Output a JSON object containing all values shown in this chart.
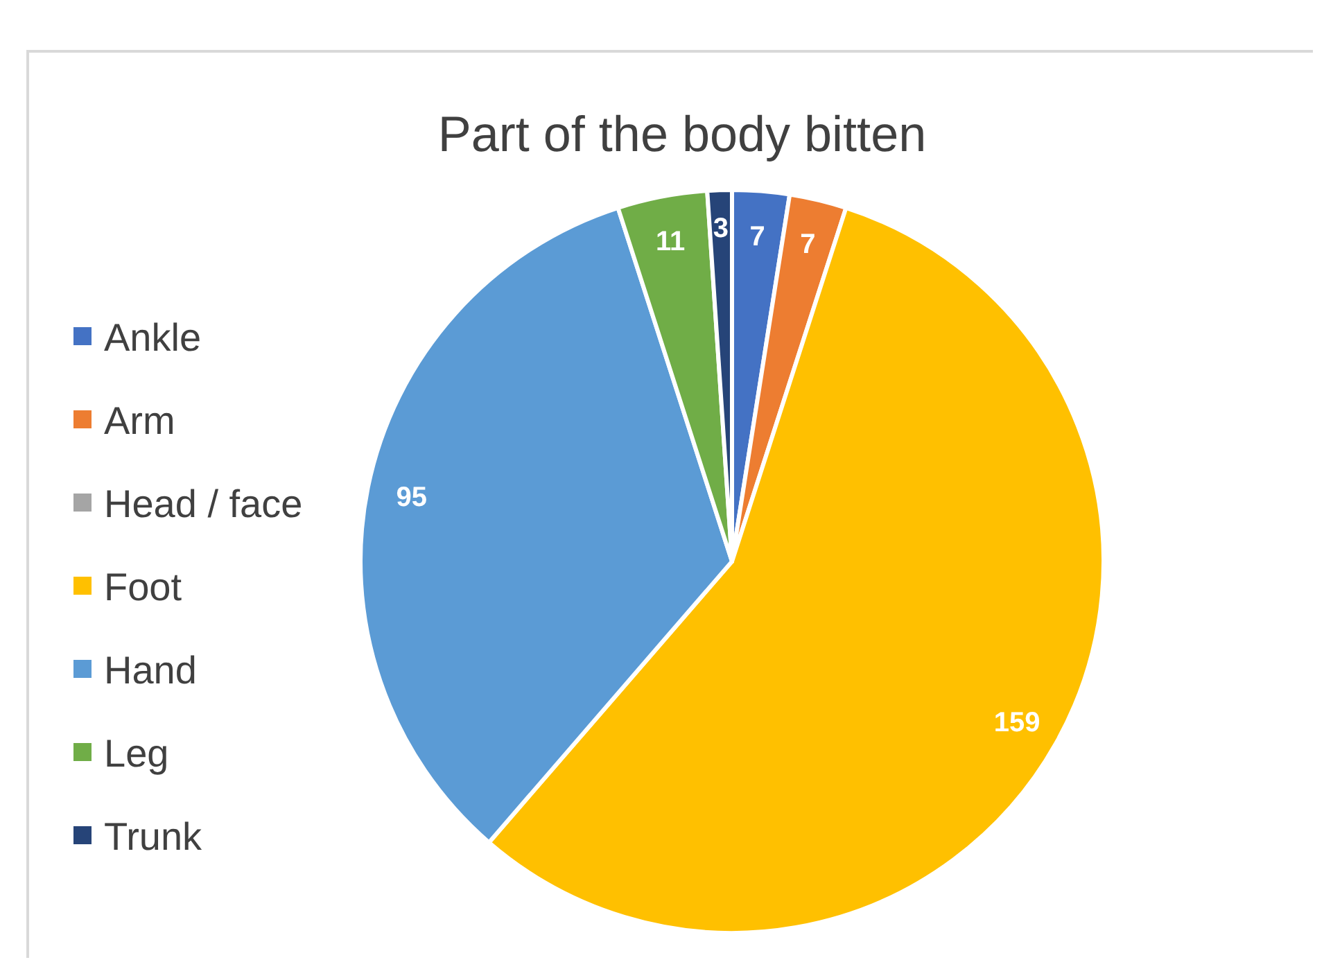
{
  "chart_data": {
    "type": "pie",
    "title": "Part of the body bitten",
    "categories": [
      "Ankle",
      "Arm",
      "Head / face",
      "Foot",
      "Hand",
      "Leg",
      "Trunk"
    ],
    "values": [
      7,
      7,
      0,
      159,
      95,
      11,
      3
    ],
    "value_labels": [
      "7",
      "7",
      null,
      "159",
      "95",
      "11",
      "3"
    ],
    "colors": [
      "#4472c4",
      "#ed7d31",
      "#a5a5a5",
      "#ffc000",
      "#5b9bd5",
      "#70ad47",
      "#264478"
    ],
    "legend": "left"
  }
}
